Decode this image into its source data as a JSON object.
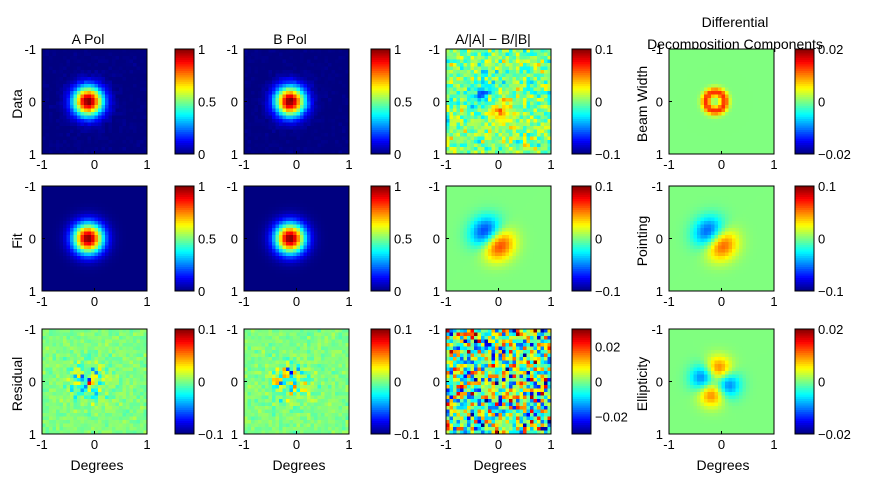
{
  "column_titles": [
    "A Pol",
    "B Pol",
    "A/|A| − B/|B|"
  ],
  "decomp_title_lines": [
    "Differential",
    "Decomposition Components"
  ],
  "row_labels": [
    "Data",
    "Fit",
    "Residual"
  ],
  "decomp_row_labels": [
    "Beam Width",
    "Pointing",
    "Ellipticity"
  ],
  "xlabel": "Degrees",
  "axis_ticks": [
    "-1",
    "0",
    "1"
  ],
  "colormap": "jet",
  "chart_data": {
    "type": "heatmap",
    "x_range": [
      -1,
      1
    ],
    "y_range": [
      -1,
      1
    ],
    "y_axis_reversed": true,
    "grid_size": 30,
    "panels": [
      {
        "row": 0,
        "col": 0,
        "pattern": "gaussian",
        "noise": 0.03,
        "clim": [
          0,
          1
        ],
        "cbar_ticks": [
          "1",
          "0.5",
          "0"
        ]
      },
      {
        "row": 0,
        "col": 1,
        "pattern": "gaussian",
        "noise": 0.03,
        "clim": [
          0,
          1
        ],
        "cbar_ticks": [
          "1",
          "0.5",
          "0"
        ]
      },
      {
        "row": 0,
        "col": 2,
        "pattern": "dipole",
        "amp": 0.3,
        "noise": 0.25,
        "clim": [
          -0.1,
          0.1
        ],
        "cbar_ticks": [
          "0.1",
          "0",
          "−0.1"
        ]
      },
      {
        "row": 0,
        "col": 3,
        "pattern": "ring",
        "amp": 0.55,
        "noise": 0,
        "clim": [
          -0.02,
          0.02
        ],
        "cbar_ticks": [
          "0.02",
          "0",
          "−0.02"
        ]
      },
      {
        "row": 1,
        "col": 0,
        "pattern": "gaussian",
        "noise": 0,
        "clim": [
          0,
          1
        ],
        "cbar_ticks": [
          "1",
          "0.5",
          "0"
        ]
      },
      {
        "row": 1,
        "col": 1,
        "pattern": "gaussian",
        "noise": 0,
        "clim": [
          0,
          1
        ],
        "cbar_ticks": [
          "1",
          "0.5",
          "0"
        ]
      },
      {
        "row": 1,
        "col": 2,
        "pattern": "dipole",
        "amp": 0.5,
        "noise": 0,
        "clim": [
          -0.1,
          0.1
        ],
        "cbar_ticks": [
          "0.1",
          "0",
          "−0.1"
        ]
      },
      {
        "row": 1,
        "col": 3,
        "pattern": "dipole",
        "amp": 0.45,
        "noise": 0,
        "clim": [
          -0.1,
          0.1
        ],
        "cbar_ticks": [
          "0.1",
          "0",
          "−0.1"
        ]
      },
      {
        "row": 2,
        "col": 0,
        "pattern": "residual",
        "noise": 0.18,
        "clim": [
          -0.1,
          0.1
        ],
        "cbar_ticks": [
          "0.1",
          "0",
          "−0.1"
        ]
      },
      {
        "row": 2,
        "col": 1,
        "pattern": "residual",
        "noise": 0.18,
        "clim": [
          -0.1,
          0.1
        ],
        "cbar_ticks": [
          "0.1",
          "0",
          "−0.1"
        ]
      },
      {
        "row": 2,
        "col": 2,
        "pattern": "noise",
        "noise": 0.35,
        "clim": [
          -0.03,
          0.03
        ],
        "cbar_ticks": [
          "0.02",
          "0",
          "−0.02"
        ]
      },
      {
        "row": 2,
        "col": 3,
        "pattern": "quadrupole",
        "amp": 0.45,
        "noise": 0,
        "clim": [
          -0.02,
          0.02
        ],
        "cbar_ticks": [
          "0.02",
          "0",
          "−0.02"
        ]
      }
    ]
  }
}
